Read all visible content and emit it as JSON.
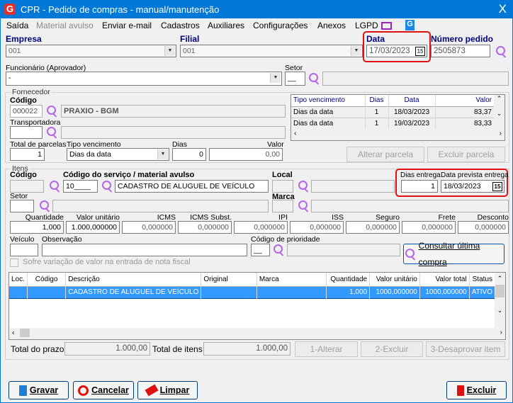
{
  "window": {
    "title": "CPR - Pedido de compras - manual/manutenção",
    "close": "X",
    "app_logo": "G"
  },
  "menu": [
    "Saída",
    "Material avulso",
    "Enviar e-mail",
    "Cadastros",
    "Auxiliares",
    "Configurações",
    "Anexos",
    "LGPD"
  ],
  "menu_icons": [
    "monitor-icon",
    "g-brand-icon"
  ],
  "header": {
    "empresa_label": "Empresa",
    "empresa_value": "001",
    "filial_label": "Filial",
    "filial_value": "001",
    "data_label": "Data",
    "data_value": "17/03/2023",
    "numero_label": "Número pedido",
    "numero_value": "2505873",
    "funcionario_label": "Funcionário (Aprovador)",
    "funcionario_value": "-",
    "setor_label": "Setor",
    "setor_value": "__",
    "calendar_glyph": "15"
  },
  "fornecedor": {
    "group": "Fornecedor",
    "codigo_label": "Código",
    "codigo_value": "000022",
    "nome": "PRAXIO - BGM",
    "transportadora_label": "Transportadora",
    "total_parcelas_label": "Total de parcelas",
    "total_parcelas": "1",
    "tipo_venc_label": "Tipo vencimento",
    "tipo_venc": "Dias da data",
    "dias_label": "Dias",
    "dias": "0",
    "valor_label": "Valor",
    "valor": "0,00",
    "grid": {
      "columns": [
        "Tipo vencimento",
        "Dias",
        "Data",
        "Valor"
      ],
      "rows": [
        [
          "Dias da data",
          "1",
          "18/03/2023",
          "83,37"
        ],
        [
          "Dias da data",
          "1",
          "19/03/2023",
          "83,33"
        ]
      ]
    },
    "alterar": "Alterar parcela",
    "excluir": "Excluir parcela"
  },
  "itens": {
    "group": "Itens",
    "codigo_label": "Código",
    "servico_label": "Código do serviço / material avulso",
    "servico_code": "10____",
    "servico_desc": "CADASTRO DE ALUGUEL DE VEÍCULO",
    "local_label": "Local",
    "dias_entrega_label": "Dias entrega",
    "dias_entrega": "1",
    "data_prev_label": "Data prevista entrega",
    "data_prev": "18/03/2023",
    "setor_label": "Setor",
    "marca_label": "Marca",
    "valores": [
      {
        "label": "Quantidade",
        "value": "1,000"
      },
      {
        "label": "Valor unitário",
        "value": "1.000,000000"
      },
      {
        "label": "ICMS",
        "value": "0,000000"
      },
      {
        "label": "ICMS Subst.",
        "value": "0,000000"
      },
      {
        "label": "IPI",
        "value": "0,000000"
      },
      {
        "label": "ISS",
        "value": "0,000000"
      },
      {
        "label": "Seguro",
        "value": "0,000000"
      },
      {
        "label": "Frete",
        "value": "0,000000"
      },
      {
        "label": "Desconto",
        "value": "0,000000"
      }
    ],
    "veiculo_label": "Veículo",
    "observacao_label": "Observação",
    "prioridade_label": "Código de prioridade",
    "prioridade": "__",
    "consultar": "Consultar última compra",
    "checkbox_label": "Sofre variação de valor na entrada de nota fiscal",
    "table": {
      "columns": [
        "Loc.",
        "Código",
        "Descrição",
        "Original",
        "Marca",
        "Quantidade",
        "Valor unitário",
        "Valor total",
        "Status"
      ],
      "rows": [
        [
          "",
          "",
          "CADASTRO DE ALUGUEL DE VEÍCULO",
          "",
          "",
          "1,000",
          "1000,000000",
          "1000,000000",
          "ATIVO"
        ]
      ]
    },
    "total_prazo_label": "Total do prazo",
    "total_prazo": "1.000,00",
    "total_itens_label": "Total de itens",
    "total_itens": "1.000,00",
    "btn_alterar": "1-Alterar",
    "btn_excluir": "2-Excluir",
    "btn_desaprovar": "3-Desaprovar item"
  },
  "footer": {
    "gravar": "Gravar",
    "cancelar": "Cancelar",
    "limpar": "Limpar",
    "excluir": "Excluir"
  },
  "colors": {
    "titlebar": "#0078d7",
    "highlight": "#3399ff",
    "label_blue": "#000080",
    "callout": "#e01010",
    "search": "#b565e8"
  }
}
